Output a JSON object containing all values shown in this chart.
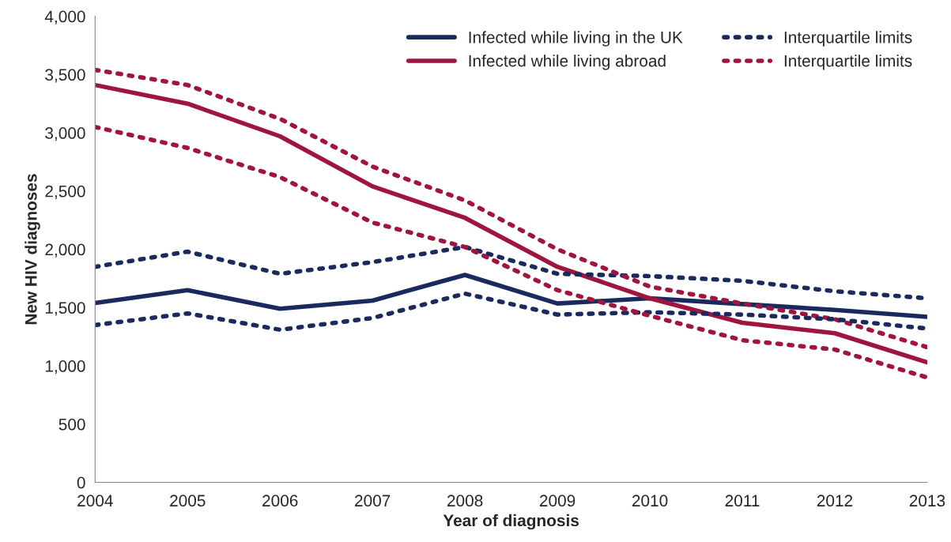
{
  "chart_data": {
    "type": "line",
    "xlabel": "Year of diagnosis",
    "ylabel": "New HIV diagnoses",
    "categories": [
      "2004",
      "2005",
      "2006",
      "2007",
      "2008",
      "2009",
      "2010",
      "2011",
      "2012",
      "2013"
    ],
    "ylim": [
      0,
      4000
    ],
    "yticks": [
      0,
      500,
      {
        "value": 1000,
        "label": "1,000"
      },
      {
        "value": 1500,
        "label": "1,500"
      },
      {
        "value": 2000,
        "label": "2,000"
      },
      {
        "value": 2500,
        "label": "2,500"
      },
      {
        "value": 3000,
        "label": "3,000"
      },
      {
        "value": 3500,
        "label": "3,500"
      },
      {
        "value": 4000,
        "label": "4,000"
      }
    ],
    "grid": false,
    "legend": "top right",
    "marker": "none",
    "series": [
      {
        "name": "Infected while living in the UK",
        "color": "#1b2a5e",
        "line_style": "solid",
        "values": [
          1540,
          1650,
          1490,
          1560,
          1780,
          1535,
          1580,
          1530,
          1480,
          1420
        ]
      },
      {
        "name": "Infected while living abroad",
        "color": "#a0153e",
        "line_style": "solid",
        "values": [
          3410,
          3250,
          2970,
          2540,
          2270,
          1850,
          1580,
          1370,
          1280,
          1030
        ]
      },
      {
        "name": "Interquartile limits",
        "color": "#1b2a5e",
        "line_style": "dotted",
        "values": [
          1850,
          1980,
          1790,
          1890,
          2020,
          1790,
          1770,
          1730,
          1640,
          1580
        ]
      },
      {
        "name": "Interquartile limits",
        "color": "#a0153e",
        "line_style": "dotted",
        "values": [
          3540,
          3410,
          3120,
          2710,
          2420,
          2000,
          1680,
          1535,
          1400,
          1160
        ]
      },
      {
        "color": "#1b2a5e",
        "line_style": "dotted",
        "values": [
          1350,
          1450,
          1310,
          1410,
          1620,
          1440,
          1460,
          1440,
          1400,
          1320
        ]
      },
      {
        "color": "#a0153e",
        "line_style": "dotted",
        "values": [
          3050,
          2870,
          2620,
          2230,
          2020,
          1650,
          1430,
          1220,
          1140,
          900
        ]
      }
    ]
  }
}
